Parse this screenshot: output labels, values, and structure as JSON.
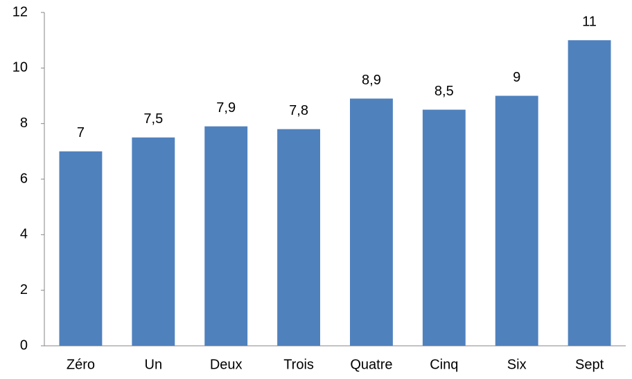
{
  "chart_data": {
    "type": "bar",
    "categories": [
      "Zéro",
      "Un",
      "Deux",
      "Trois",
      "Quatre",
      "Cinq",
      "Six",
      "Sept"
    ],
    "values": [
      7,
      7.5,
      7.9,
      7.8,
      8.9,
      8.5,
      9,
      11
    ],
    "value_labels": [
      "7",
      "7,5",
      "7,9",
      "7,8",
      "8,9",
      "8,5",
      "9",
      "11"
    ],
    "color": "#4f81bd",
    "ylim": [
      0,
      12
    ],
    "yticks": [
      0,
      2,
      4,
      6,
      8,
      10,
      12
    ],
    "grid": false
  }
}
